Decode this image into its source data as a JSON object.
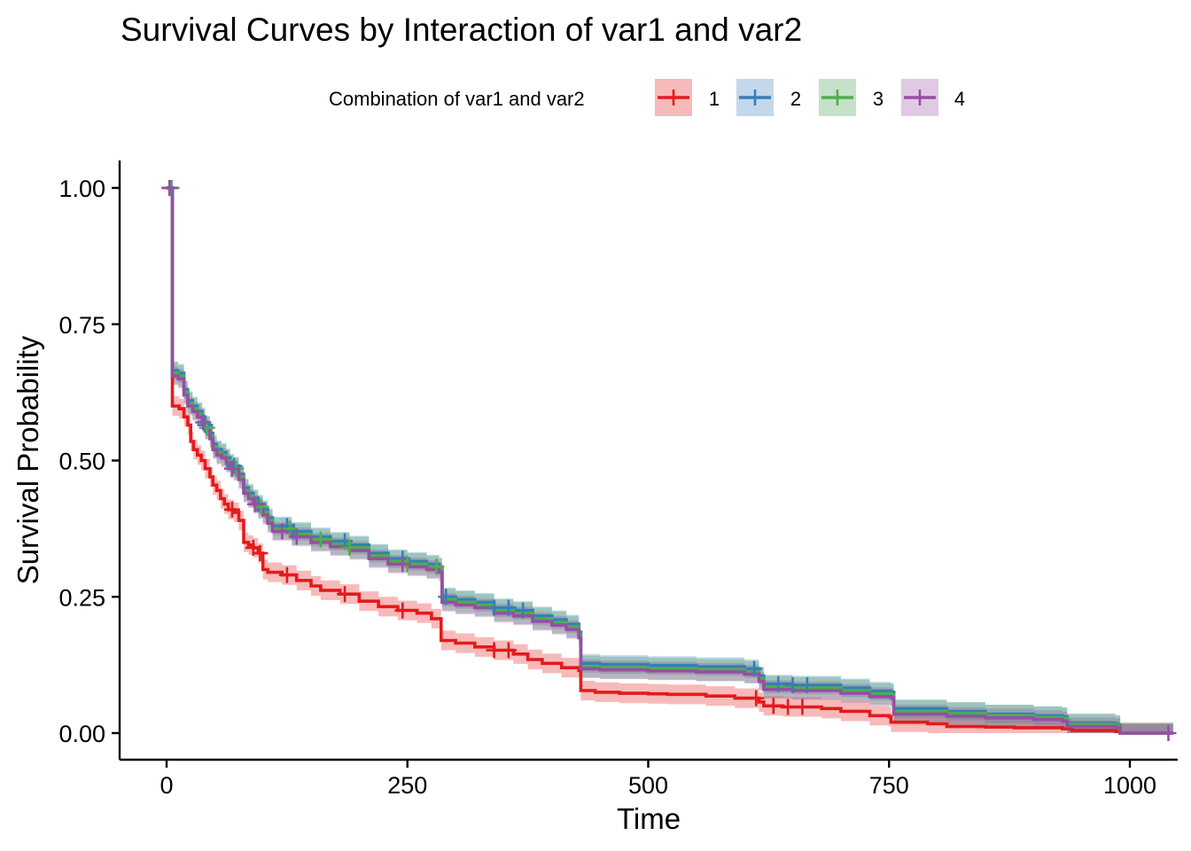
{
  "chart_data": {
    "type": "line",
    "subtype": "kaplan-meier step curves with confidence bands and censor marks",
    "title": "Survival Curves by Interaction of var1 and var2",
    "xlabel": "Time",
    "ylabel": "Survival Probability",
    "xlim": [
      0,
      1045
    ],
    "ylim": [
      0,
      1
    ],
    "x_ticks": [
      0,
      250,
      500,
      750,
      1000
    ],
    "y_ticks": [
      0,
      0.25,
      0.5,
      0.75,
      1
    ],
    "x_tick_labels": [
      "0",
      "250",
      "500",
      "750",
      "1000"
    ],
    "y_tick_labels": [
      "0.00",
      "0.25",
      "0.50",
      "0.75",
      "1.00"
    ],
    "grid": false,
    "legend": {
      "title": "Combination of var1 and var2",
      "position": "top",
      "entries": [
        "1",
        "2",
        "3",
        "4"
      ]
    },
    "series": [
      {
        "name": "1",
        "color": "#E41A1C",
        "band_color": "#E41A1C",
        "band_half_width": 0.018,
        "steps": [
          [
            0,
            1
          ],
          [
            6,
            1
          ],
          [
            6,
            0.6
          ],
          [
            10,
            0.6
          ],
          [
            13,
            0.595
          ],
          [
            18,
            0.58
          ],
          [
            22,
            0.565
          ],
          [
            25,
            0.535
          ],
          [
            28,
            0.52
          ],
          [
            32,
            0.51
          ],
          [
            36,
            0.5
          ],
          [
            40,
            0.485
          ],
          [
            45,
            0.47
          ],
          [
            48,
            0.455
          ],
          [
            52,
            0.445
          ],
          [
            56,
            0.43
          ],
          [
            60,
            0.42
          ],
          [
            64,
            0.41
          ],
          [
            70,
            0.405
          ],
          [
            75,
            0.39
          ],
          [
            80,
            0.35
          ],
          [
            85,
            0.345
          ],
          [
            90,
            0.34
          ],
          [
            95,
            0.33
          ],
          [
            100,
            0.3
          ],
          [
            105,
            0.295
          ],
          [
            120,
            0.29
          ],
          [
            135,
            0.28
          ],
          [
            150,
            0.27
          ],
          [
            160,
            0.262
          ],
          [
            180,
            0.255
          ],
          [
            200,
            0.242
          ],
          [
            220,
            0.232
          ],
          [
            240,
            0.225
          ],
          [
            260,
            0.22
          ],
          [
            275,
            0.21
          ],
          [
            285,
            0.17
          ],
          [
            300,
            0.165
          ],
          [
            320,
            0.158
          ],
          [
            340,
            0.152
          ],
          [
            360,
            0.145
          ],
          [
            375,
            0.135
          ],
          [
            390,
            0.128
          ],
          [
            410,
            0.12
          ],
          [
            428,
            0.115
          ],
          [
            430,
            0.078
          ],
          [
            445,
            0.075
          ],
          [
            470,
            0.073
          ],
          [
            500,
            0.072
          ],
          [
            520,
            0.071
          ],
          [
            560,
            0.068
          ],
          [
            590,
            0.064
          ],
          [
            615,
            0.057
          ],
          [
            620,
            0.05
          ],
          [
            640,
            0.048
          ],
          [
            680,
            0.045
          ],
          [
            700,
            0.04
          ],
          [
            730,
            0.032
          ],
          [
            750,
            0.03
          ],
          [
            752,
            0.02
          ],
          [
            790,
            0.017
          ],
          [
            810,
            0.012
          ],
          [
            850,
            0.011
          ],
          [
            880,
            0.01
          ],
          [
            930,
            0.008
          ],
          [
            940,
            0.005
          ],
          [
            960,
            0.005
          ],
          [
            985,
            0.003
          ],
          [
            990,
            0
          ],
          [
            1045,
            0
          ]
        ],
        "censor_times": [
          3,
          68,
          90,
          97,
          125,
          185,
          245,
          340,
          355,
          612,
          630,
          645,
          660
        ]
      },
      {
        "name": "2",
        "color": "#377EB8",
        "band_color": "#377EB8",
        "band_half_width": 0.017,
        "steps": [
          [
            0,
            1
          ],
          [
            6,
            1
          ],
          [
            6,
            0.665
          ],
          [
            12,
            0.66
          ],
          [
            18,
            0.63
          ],
          [
            22,
            0.61
          ],
          [
            27,
            0.6
          ],
          [
            32,
            0.59
          ],
          [
            37,
            0.58
          ],
          [
            40,
            0.565
          ],
          [
            45,
            0.55
          ],
          [
            48,
            0.53
          ],
          [
            52,
            0.52
          ],
          [
            57,
            0.515
          ],
          [
            62,
            0.505
          ],
          [
            66,
            0.495
          ],
          [
            70,
            0.49
          ],
          [
            75,
            0.475
          ],
          [
            80,
            0.45
          ],
          [
            85,
            0.44
          ],
          [
            90,
            0.43
          ],
          [
            95,
            0.42
          ],
          [
            100,
            0.41
          ],
          [
            105,
            0.395
          ],
          [
            110,
            0.38
          ],
          [
            130,
            0.37
          ],
          [
            150,
            0.36
          ],
          [
            170,
            0.352
          ],
          [
            190,
            0.345
          ],
          [
            210,
            0.33
          ],
          [
            230,
            0.32
          ],
          [
            250,
            0.315
          ],
          [
            270,
            0.31
          ],
          [
            283,
            0.305
          ],
          [
            286,
            0.25
          ],
          [
            300,
            0.245
          ],
          [
            320,
            0.24
          ],
          [
            340,
            0.23
          ],
          [
            360,
            0.225
          ],
          [
            380,
            0.215
          ],
          [
            400,
            0.208
          ],
          [
            415,
            0.2
          ],
          [
            428,
            0.185
          ],
          [
            430,
            0.128
          ],
          [
            450,
            0.126
          ],
          [
            500,
            0.124
          ],
          [
            550,
            0.122
          ],
          [
            600,
            0.118
          ],
          [
            615,
            0.105
          ],
          [
            620,
            0.09
          ],
          [
            650,
            0.088
          ],
          [
            700,
            0.083
          ],
          [
            730,
            0.077
          ],
          [
            752,
            0.075
          ],
          [
            755,
            0.045
          ],
          [
            810,
            0.04
          ],
          [
            850,
            0.035
          ],
          [
            900,
            0.032
          ],
          [
            930,
            0.03
          ],
          [
            935,
            0.018
          ],
          [
            985,
            0.015
          ],
          [
            990,
            0
          ],
          [
            1045,
            0
          ]
        ],
        "censor_times": [
          5,
          40,
          70,
          95,
          125,
          132,
          185,
          245,
          290,
          340,
          355,
          370,
          610,
          635,
          650,
          665
        ]
      },
      {
        "name": "3",
        "color": "#4DAF4A",
        "band_color": "#3F9B51",
        "band_half_width": 0.02,
        "steps": [
          [
            0,
            1
          ],
          [
            6,
            1
          ],
          [
            6,
            0.66
          ],
          [
            12,
            0.655
          ],
          [
            18,
            0.625
          ],
          [
            22,
            0.605
          ],
          [
            27,
            0.595
          ],
          [
            32,
            0.585
          ],
          [
            37,
            0.575
          ],
          [
            40,
            0.56
          ],
          [
            45,
            0.545
          ],
          [
            48,
            0.525
          ],
          [
            52,
            0.515
          ],
          [
            57,
            0.51
          ],
          [
            62,
            0.5
          ],
          [
            66,
            0.49
          ],
          [
            70,
            0.485
          ],
          [
            75,
            0.47
          ],
          [
            80,
            0.445
          ],
          [
            85,
            0.435
          ],
          [
            90,
            0.425
          ],
          [
            95,
            0.415
          ],
          [
            100,
            0.405
          ],
          [
            105,
            0.39
          ],
          [
            110,
            0.375
          ],
          [
            130,
            0.365
          ],
          [
            150,
            0.355
          ],
          [
            170,
            0.347
          ],
          [
            190,
            0.34
          ],
          [
            210,
            0.325
          ],
          [
            230,
            0.315
          ],
          [
            250,
            0.31
          ],
          [
            270,
            0.305
          ],
          [
            283,
            0.3
          ],
          [
            286,
            0.245
          ],
          [
            300,
            0.24
          ],
          [
            320,
            0.235
          ],
          [
            340,
            0.225
          ],
          [
            360,
            0.22
          ],
          [
            380,
            0.21
          ],
          [
            400,
            0.203
          ],
          [
            415,
            0.195
          ],
          [
            428,
            0.18
          ],
          [
            430,
            0.122
          ],
          [
            450,
            0.12
          ],
          [
            500,
            0.118
          ],
          [
            550,
            0.116
          ],
          [
            600,
            0.112
          ],
          [
            615,
            0.1
          ],
          [
            620,
            0.085
          ],
          [
            650,
            0.083
          ],
          [
            700,
            0.078
          ],
          [
            730,
            0.072
          ],
          [
            752,
            0.07
          ],
          [
            755,
            0.04
          ],
          [
            810,
            0.036
          ],
          [
            850,
            0.032
          ],
          [
            900,
            0.029
          ],
          [
            930,
            0.027
          ],
          [
            935,
            0.016
          ],
          [
            985,
            0.013
          ],
          [
            990,
            0
          ],
          [
            1045,
            0
          ]
        ],
        "censor_times": [
          4,
          42,
          72,
          98,
          128,
          160,
          190,
          250,
          280
        ],
        "band_only": false
      },
      {
        "name": "4",
        "color": "#984EA3",
        "band_color": "#984EA3",
        "band_half_width": 0.017,
        "steps": [
          [
            0,
            1
          ],
          [
            6,
            1
          ],
          [
            6,
            0.655
          ],
          [
            12,
            0.65
          ],
          [
            18,
            0.62
          ],
          [
            22,
            0.6
          ],
          [
            27,
            0.59
          ],
          [
            32,
            0.58
          ],
          [
            37,
            0.57
          ],
          [
            40,
            0.555
          ],
          [
            45,
            0.54
          ],
          [
            48,
            0.52
          ],
          [
            52,
            0.51
          ],
          [
            57,
            0.505
          ],
          [
            62,
            0.495
          ],
          [
            66,
            0.485
          ],
          [
            70,
            0.48
          ],
          [
            75,
            0.465
          ],
          [
            80,
            0.44
          ],
          [
            85,
            0.43
          ],
          [
            90,
            0.42
          ],
          [
            95,
            0.41
          ],
          [
            100,
            0.4
          ],
          [
            105,
            0.385
          ],
          [
            110,
            0.37
          ],
          [
            130,
            0.36
          ],
          [
            150,
            0.35
          ],
          [
            170,
            0.342
          ],
          [
            190,
            0.335
          ],
          [
            210,
            0.32
          ],
          [
            230,
            0.31
          ],
          [
            250,
            0.305
          ],
          [
            270,
            0.3
          ],
          [
            283,
            0.295
          ],
          [
            286,
            0.24
          ],
          [
            300,
            0.235
          ],
          [
            320,
            0.23
          ],
          [
            340,
            0.22
          ],
          [
            360,
            0.215
          ],
          [
            380,
            0.205
          ],
          [
            400,
            0.198
          ],
          [
            415,
            0.19
          ],
          [
            428,
            0.175
          ],
          [
            430,
            0.118
          ],
          [
            450,
            0.116
          ],
          [
            500,
            0.114
          ],
          [
            550,
            0.112
          ],
          [
            600,
            0.108
          ],
          [
            615,
            0.095
          ],
          [
            620,
            0.08
          ],
          [
            650,
            0.078
          ],
          [
            700,
            0.073
          ],
          [
            730,
            0.067
          ],
          [
            752,
            0.065
          ],
          [
            755,
            0.035
          ],
          [
            810,
            0.031
          ],
          [
            850,
            0.028
          ],
          [
            900,
            0.025
          ],
          [
            930,
            0.022
          ],
          [
            935,
            0.012
          ],
          [
            985,
            0.01
          ],
          [
            990,
            0
          ],
          [
            1045,
            0
          ]
        ],
        "censor_times": [
          3,
          38,
          68,
          92,
          120,
          135,
          245,
          1040
        ]
      }
    ]
  }
}
